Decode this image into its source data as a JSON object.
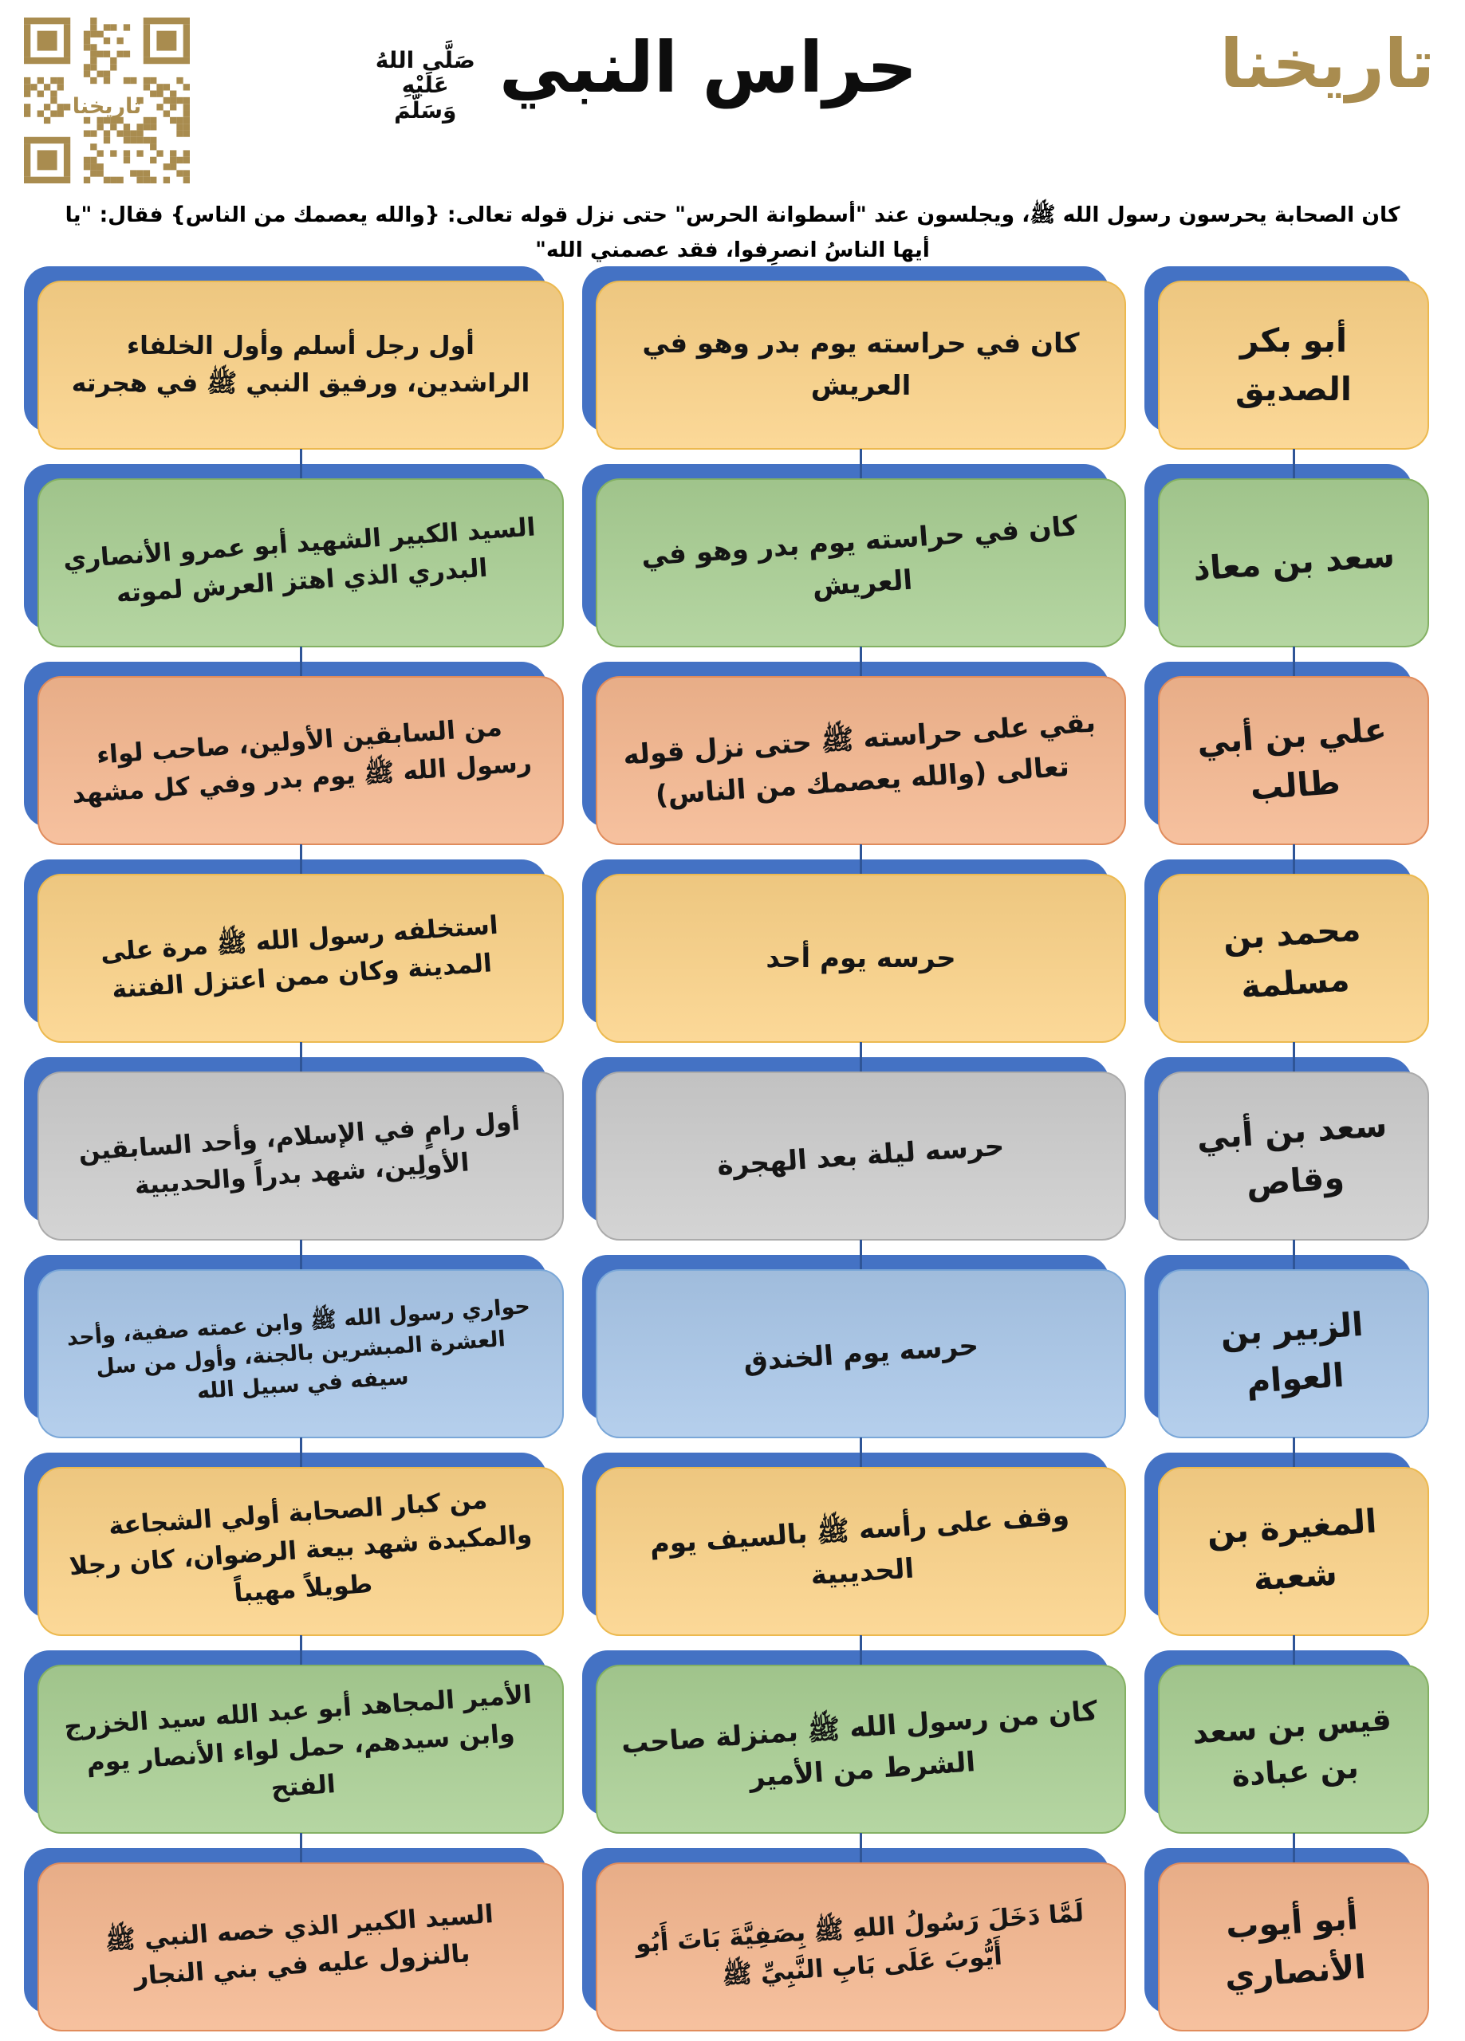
{
  "header": {
    "title": "حراس النبي",
    "saw": {
      "l1": "صَلَّى اللهُ",
      "l2": "عَلَيْهِ",
      "l3": "وَسَلَّمَ"
    },
    "logo": "تاريخنا",
    "qr_label": "تاريخنا",
    "subtitle": "كان الصحابة يحرسون رسول الله ﷺ، ويجلسون عند \"أسطوانة الحرس\" حتى نزل قوله تعالى: {والله يعصمك من الناس} فقال: \"يا أيها الناسُ انصرِفوا، فقد عصمني الله\""
  },
  "colors": {
    "back_plate": "#4472C4",
    "connector": "#2F5597",
    "gold": "#A98C4F"
  },
  "rows": [
    {
      "name": "أبو بكر الصديق",
      "role": "كان في حراسته يوم بدر وهو في العريش",
      "bio": "أول رجل أسلم وأول الخلفاء الراشدين، ورفيق النبي ﷺ في هجرته",
      "fill": "#FBD287",
      "border": "#ECB94F"
    },
    {
      "name": "سعد بن معاذ",
      "role": "كان في حراسته يوم بدر وهو في العريش",
      "bio": "السيد الكبير الشهيد أبو عمرو الأنصاري البدري الذي اهتز العرش لموته",
      "fill": "#A9CF93",
      "border": "#84B163"
    },
    {
      "name": "علي بن أبي طالب",
      "role": "بقي على حراسته ﷺ حتى نزل قوله تعالى (والله يعصمك من الناس)",
      "bio": "من السابقين الأولين، صاحب لواء رسول الله ﷺ يوم بدر وفي كل مشهد",
      "fill": "#F5B78F",
      "border": "#E08C5C"
    },
    {
      "name": "محمد بن مسلمة",
      "role": "حرسه يوم أحد",
      "bio": "استخلفه رسول الله ﷺ مرة على المدينة وكان ممن اعتزل الفتنة",
      "fill": "#FBD287",
      "border": "#ECB94F"
    },
    {
      "name": "سعد بن أبي وقاص",
      "role": "حرسه ليلة بعد الهجرة",
      "bio": "أول رامٍ في الإسلام، وأحد السابقين الأولِين، شهد بدراً والحديبية",
      "fill": "#CDCDCD",
      "border": "#ABABAB"
    },
    {
      "name": "الزبير بن العوام",
      "role": "حرسه يوم الخندق",
      "bio": "حواري رسول الله ﷺ وابن عمته صفية، وأحد العشرة المبشرين بالجنة، وأول من سل سيفه في سبيل الله",
      "fill": "#A9C7E9",
      "border": "#7AA7D8"
    },
    {
      "name": "المغيرة بن شعبة",
      "role": "وقف على رأسه ﷺ بالسيف يوم الحديبية",
      "bio": "من كبار الصحابة أولي الشجاعة والمكيدة شهد بيعة الرضوان، كان رجلا طويلاً مهيباً",
      "fill": "#FBD287",
      "border": "#ECB94F"
    },
    {
      "name": "قيس بن سعد بن عبادة",
      "role": "كان من رسول الله ﷺ بمنزلة صاحب الشرط من الأمير",
      "bio": "الأمير المجاهد أبو عبد الله سيد الخزرج وابن سيدهم، حمل لواء الأنصار يوم الفتح",
      "fill": "#A9CF93",
      "border": "#84B163"
    },
    {
      "name": "أبو أيوب الأنصاري",
      "role": "لَمَّا دَخَلَ رَسُولُ اللهِ ﷺ بِصَفِيَّةَ بَاتَ أَبُو أَيُّوبَ عَلَى بَابِ النَّبِيِّ ﷺ",
      "bio": "السيد الكبير الذي خصه النبي ﷺ بالنزول عليه في بني النجار",
      "fill": "#F5B78F",
      "border": "#E08C5C"
    }
  ]
}
